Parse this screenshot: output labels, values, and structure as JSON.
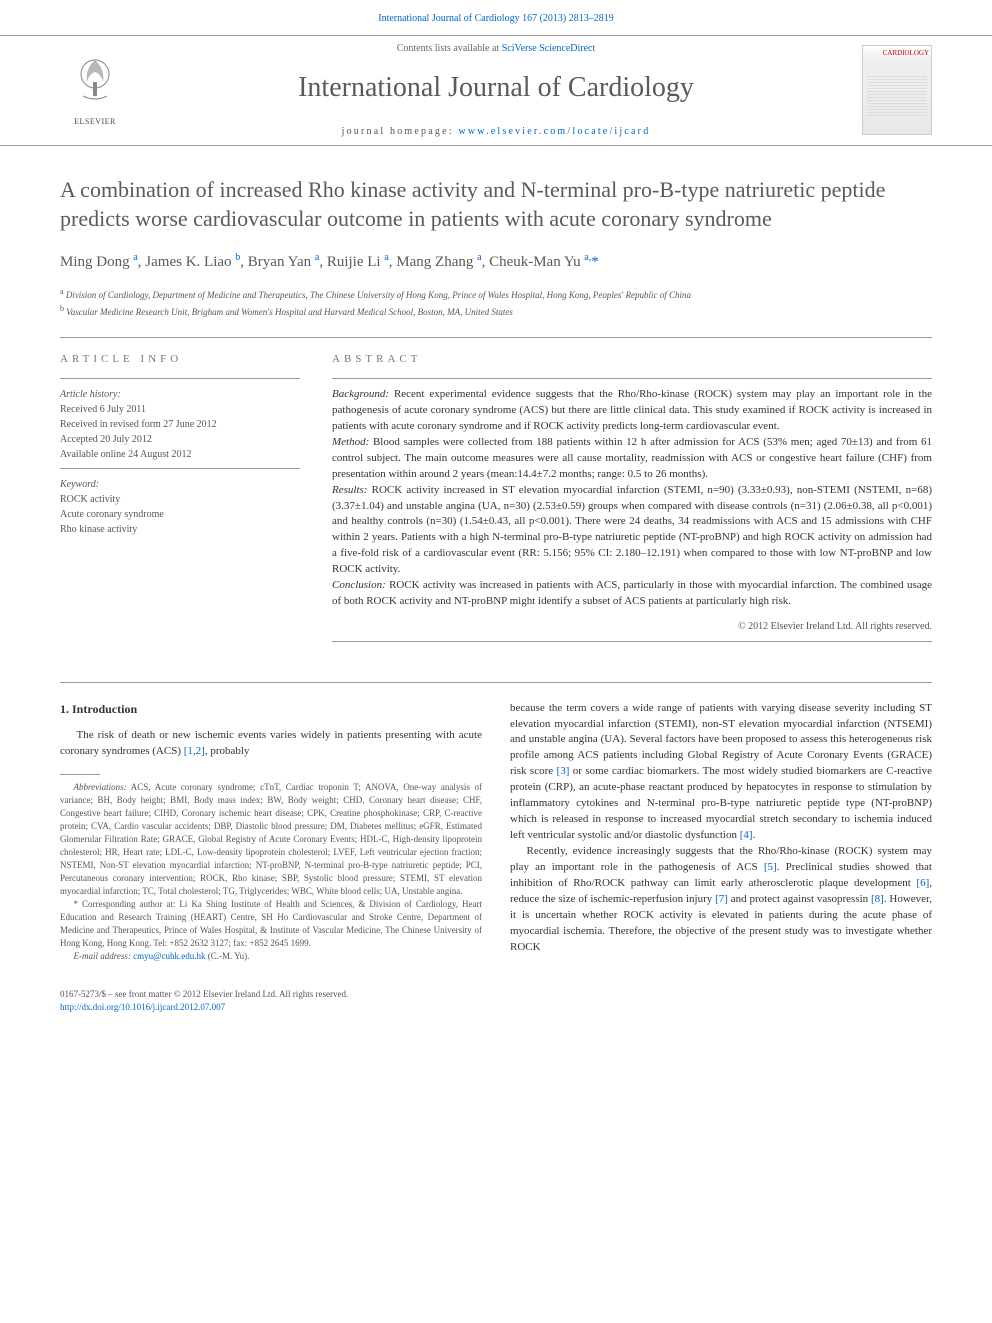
{
  "top_citation_link": "International Journal of Cardiology 167 (2013) 2813–2819",
  "masthead": {
    "contents_prefix": "Contents lists available at ",
    "contents_link": "SciVerse ScienceDirect",
    "journal_title": "International Journal of Cardiology",
    "homepage_prefix": "journal homepage: ",
    "homepage_url": "www.elsevier.com/locate/ijcard",
    "elsevier_label": "ELSEVIER",
    "cover_label": "CARDIOLOGY"
  },
  "article": {
    "title": "A combination of increased Rho kinase activity and N-terminal pro-B-type natriuretic peptide predicts worse cardiovascular outcome in patients with acute coronary syndrome",
    "authors_html": "Ming Dong <sup>a</sup>, James K. Liao <sup>b</sup>, Bryan Yan <sup>a</sup>, Ruijie Li <sup>a</sup>, Mang Zhang <sup>a</sup>, Cheuk-Man Yu <sup>a,</sup><span class='star'>*</span>",
    "affiliations": {
      "a": "Division of Cardiology, Department of Medicine and Therapeutics, The Chinese University of Hong Kong, Prince of Wales Hospital, Hong Kong, Peoples' Republic of China",
      "b": "Vascular Medicine Research Unit, Brigham and Women's Hospital and Harvard Medical School, Boston, MA, United States"
    }
  },
  "article_info": {
    "label": "ARTICLE INFO",
    "history_label": "Article history:",
    "received": "Received 6 July 2011",
    "revised": "Received in revised form 27 June 2012",
    "accepted": "Accepted 20 July 2012",
    "online": "Available online 24 August 2012",
    "keyword_label": "Keyword:",
    "keywords": [
      "ROCK activity",
      "Acute coronary syndrome",
      "Rho kinase activity"
    ]
  },
  "abstract": {
    "label": "ABSTRACT",
    "background_label": "Background:",
    "background": " Recent experimental evidence suggests that the Rho/Rho-kinase (ROCK) system may play an important role in the pathogenesis of acute coronary syndrome (ACS) but there are little clinical data. This study examined if ROCK activity is increased in patients with acute coronary syndrome and if ROCK activity predicts long-term cardiovascular event.",
    "method_label": "Method:",
    "method": " Blood samples were collected from 188 patients within 12 h after admission for ACS (53% men; aged 70±13) and from 61 control subject. The main outcome measures were all cause mortality, readmission with ACS or congestive heart failure (CHF) from presentation within around 2 years (mean:14.4±7.2 months; range: 0.5 to 26 months).",
    "results_label": "Results:",
    "results": " ROCK activity increased in ST elevation myocardial infarction (STEMI, n=90) (3.33±0.93), non-STEMI (NSTEMI, n=68) (3.37±1.04) and unstable angina (UA, n=30) (2.53±0.59) groups when compared with disease controls (n=31) (2.06±0.38, all p<0.001) and healthy controls (n=30) (1.54±0.43, all p<0.001). There were 24 deaths, 34 readmissions with ACS and 15 admissions with CHF within 2 years. Patients with a high N-terminal pro-B-type natriuretic peptide (NT-proBNP) and high ROCK activity on admission had a five-fold risk of a cardiovascular event (RR: 5.156; 95% CI: 2.180–12.191) when compared to those with low NT-proBNP and low ROCK activity.",
    "conclusion_label": "Conclusion:",
    "conclusion": " ROCK activity was increased in patients with ACS, particularly in those with myocardial infarction. The combined usage of both ROCK activity and NT-proBNP might identify a subset of ACS patients at particularly high risk.",
    "copyright": "© 2012 Elsevier Ireland Ltd. All rights reserved."
  },
  "body": {
    "intro_heading": "1. Introduction",
    "intro_p1_pre": "The risk of death or new ischemic events varies widely in patients presenting with acute coronary syndromes (ACS) ",
    "intro_p1_ref": "[1,2]",
    "intro_p1_post": ", probably",
    "col2_p1_a": "because the term covers a wide range of patients with varying disease severity including ST elevation myocardial infarction (STEMI), non-ST elevation myocardial infarction (NTSEMI) and unstable angina (UA). Several factors have been proposed to assess this heterogeneous risk profile among ACS patients including Global Registry of Acute Coronary Events (GRACE) risk score ",
    "col2_p1_ref3": "[3]",
    "col2_p1_b": " or some cardiac biomarkers. The most widely studied biomarkers are C-reactive protein (CRP), an acute-phase reactant produced by hepatocytes in response to stimulation by inflammatory cytokines and N-terminal pro-B-type natriuretic peptide type (NT-proBNP) which is released in response to increased myocardial stretch secondary to ischemia induced left ventricular systolic and/or diastolic dysfunction ",
    "col2_p1_ref4": "[4]",
    "col2_p1_c": ".",
    "col2_p2_a": "Recently, evidence increasingly suggests that the Rho/Rho-kinase (ROCK) system may play an important role in the pathogenesis of ACS ",
    "col2_p2_ref5": "[5]",
    "col2_p2_b": ". Preclinical studies showed that inhibition of Rho/ROCK pathway can limit early atherosclerotic plaque development ",
    "col2_p2_ref6": "[6]",
    "col2_p2_c": ", reduce the size of ischemic-reperfusion injury ",
    "col2_p2_ref7": "[7]",
    "col2_p2_d": " and protect against vasopressin ",
    "col2_p2_ref8": "[8]",
    "col2_p2_e": ". However, it is uncertain whether ROCK activity is elevated in patients during the acute phase of myocardial ischemia. Therefore, the objective of the present study was to investigate whether ROCK"
  },
  "footnotes": {
    "abbrev_label": "Abbreviations:",
    "abbrev": " ACS, Acute coronary syndrome; cTnT, Cardiac troponin T; ANOVA, One-way analysis of variance; BH, Body height; BMI, Body mass index; BW, Body weight; CHD, Coronary heart disease; CHF, Congestive heart failure; CIHD, Coronary ischemic heart disease; CPK, Creatine phosphokinase; CRP, C-reactive protein; CVA, Cardio vascular accidents; DBP, Diastolic blood pressure; DM, Diabetes mellitus; eGFR, Estimated Glomerular Filtration Rate; GRACE, Global Registry of Acute Coronary Events; HDL-C, High-density lipoprotein cholesterol; HR, Heart rate; LDL-C, Low-density lipoprotein cholesterol; LVEF, Left ventricular ejection fraction; NSTEMI, Non-ST elevation myocardial infarction; NT-proBNP, N-terminal pro-B-type natriuretic peptide; PCI, Percutaneous coronary intervention; ROCK, Rho kinase; SBP, Systolic blood pressure; STEMI, ST elevation myocardial infarction; TC, Total cholesterol; TG, Triglycerides; WBC, White blood cells; UA, Unstable angina.",
    "corr_label": "* Corresponding author at:",
    "corr": " Li Ka Shing Institute of Health and Sciences, & Division of Cardiology, Heart Education and Research Training (HEART) Centre, SH Ho Cardiovascular and Stroke Centre, Department of Medicine and Therapeutics, Prince of Wales Hospital, & Institute of Vascular Medicine, The Chinese University of Hong Kong, Hong Kong. Tel: +852 2632 3127; fax: +852 2645 1699.",
    "email_label": "E-mail address:",
    "email": "cmyu@cuhk.edu.hk",
    "email_who": " (C.-M. Yu)."
  },
  "footer": {
    "line1": "0167-5273/$ – see front matter © 2012 Elsevier Ireland Ltd. All rights reserved.",
    "doi": "http://dx.doi.org/10.1016/j.ijcard.2012.07.007"
  },
  "colors": {
    "link": "#0066cc",
    "text_muted": "#5a5a5a",
    "rule": "#999999"
  }
}
